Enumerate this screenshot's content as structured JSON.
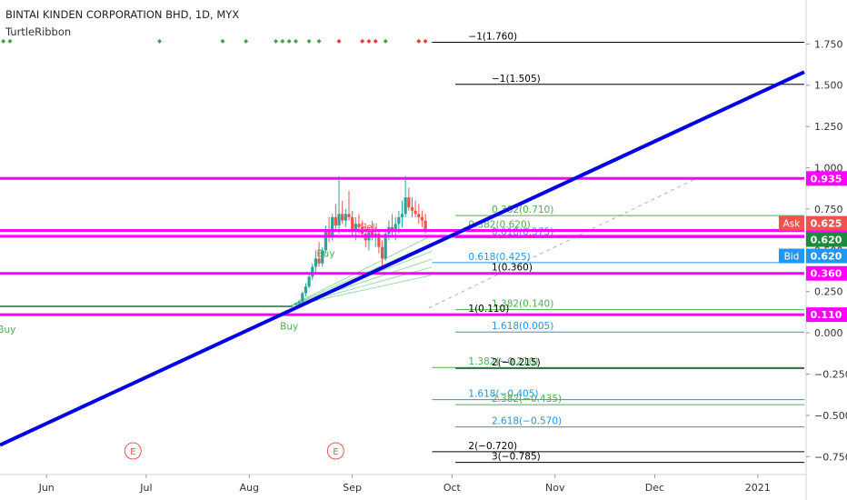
{
  "header": {
    "symbol_title": "BINTAI KINDEN CORPORATION BHD, 1D, MYX",
    "indicator": "TurtleRibbon"
  },
  "colors": {
    "background": "#ffffff",
    "magenta": "#ff00ff",
    "trend_blue": "#0000e6",
    "up_candle": "#26a69a",
    "down_candle": "#ef5350",
    "fib_green": "#4caf50",
    "fib_blue": "#2196f3",
    "fib_black": "#000000",
    "ask_red": "#ef5350",
    "bid_blue": "#2196f3",
    "last_green": "#1b8a3a"
  },
  "chart_data": {
    "type": "candlestick",
    "title": "BINTAI KINDEN CORPORATION BHD, 1D, MYX",
    "ylim": [
      -0.82,
      1.95
    ],
    "y_ticks": [
      "1.750",
      "1.500",
      "1.250",
      "1.000",
      "0.750",
      "0.500",
      "0.250",
      "0.000",
      "-0.250",
      "-0.500",
      "-0.750"
    ],
    "x_ticks": [
      {
        "label": "Jun",
        "day": 15
      },
      {
        "label": "Jul",
        "day": 45
      },
      {
        "label": "Aug",
        "day": 76
      },
      {
        "label": "Sep",
        "day": 107
      },
      {
        "label": "Oct",
        "day": 137
      },
      {
        "label": "Nov",
        "day": 168
      },
      {
        "label": "Dec",
        "day": 198
      },
      {
        "label": "2021",
        "day": 229
      }
    ],
    "x_domain": [
      1,
      243
    ],
    "candles": [
      [
        90,
        0.17,
        0.18,
        0.17,
        0.18
      ],
      [
        91,
        0.18,
        0.2,
        0.17,
        0.19
      ],
      [
        92,
        0.19,
        0.25,
        0.18,
        0.24
      ],
      [
        93,
        0.24,
        0.3,
        0.22,
        0.28
      ],
      [
        94,
        0.28,
        0.36,
        0.27,
        0.34
      ],
      [
        95,
        0.34,
        0.42,
        0.32,
        0.4
      ],
      [
        96,
        0.4,
        0.5,
        0.36,
        0.45
      ],
      [
        97,
        0.45,
        0.55,
        0.4,
        0.42
      ],
      [
        98,
        0.42,
        0.52,
        0.4,
        0.5
      ],
      [
        99,
        0.5,
        0.65,
        0.48,
        0.62
      ],
      [
        100,
        0.62,
        0.7,
        0.55,
        0.58
      ],
      [
        101,
        0.58,
        0.72,
        0.56,
        0.7
      ],
      [
        102,
        0.7,
        0.78,
        0.62,
        0.65
      ],
      [
        103,
        0.65,
        0.95,
        0.6,
        0.72
      ],
      [
        104,
        0.72,
        0.8,
        0.66,
        0.68
      ],
      [
        105,
        0.68,
        0.75,
        0.64,
        0.72
      ],
      [
        106,
        0.72,
        0.86,
        0.68,
        0.7
      ],
      [
        107,
        0.7,
        0.74,
        0.58,
        0.62
      ],
      [
        108,
        0.62,
        0.7,
        0.56,
        0.66
      ],
      [
        109,
        0.66,
        0.72,
        0.6,
        0.64
      ],
      [
        110,
        0.64,
        0.68,
        0.58,
        0.6
      ],
      [
        111,
        0.6,
        0.66,
        0.52,
        0.56
      ],
      [
        112,
        0.56,
        0.64,
        0.5,
        0.62
      ],
      [
        113,
        0.62,
        0.68,
        0.56,
        0.58
      ],
      [
        114,
        0.58,
        0.64,
        0.52,
        0.6
      ],
      [
        115,
        0.6,
        0.62,
        0.48,
        0.52
      ],
      [
        116,
        0.52,
        0.56,
        0.4,
        0.45
      ],
      [
        117,
        0.45,
        0.62,
        0.44,
        0.6
      ],
      [
        118,
        0.6,
        0.68,
        0.56,
        0.64
      ],
      [
        119,
        0.64,
        0.72,
        0.58,
        0.62
      ],
      [
        120,
        0.62,
        0.7,
        0.56,
        0.66
      ],
      [
        121,
        0.66,
        0.74,
        0.6,
        0.7
      ],
      [
        122,
        0.7,
        0.8,
        0.64,
        0.72
      ],
      [
        123,
        0.72,
        0.95,
        0.7,
        0.82
      ],
      [
        124,
        0.82,
        0.88,
        0.74,
        0.76
      ],
      [
        125,
        0.76,
        0.82,
        0.7,
        0.74
      ],
      [
        126,
        0.74,
        0.8,
        0.7,
        0.72
      ],
      [
        127,
        0.72,
        0.78,
        0.66,
        0.7
      ],
      [
        128,
        0.7,
        0.74,
        0.64,
        0.68
      ],
      [
        129,
        0.68,
        0.72,
        0.6,
        0.62
      ]
    ],
    "flat_segment": {
      "from_day": 1,
      "to_day": 89,
      "price": 0.16
    },
    "horizontal_levels": [
      {
        "label": "0.935",
        "value": 0.935
      },
      {
        "label": "0.620",
        "value": 0.62
      },
      {
        "label": "0.585",
        "value": 0.585
      },
      {
        "label": "0.360",
        "value": 0.36
      },
      {
        "label": "0.110",
        "value": 0.11
      }
    ],
    "price_badges": [
      {
        "label": "Ask",
        "value": "0.625",
        "price": 0.625,
        "kind": "ask"
      },
      {
        "label": "",
        "value": "0.620",
        "price": 0.62,
        "kind": "last"
      },
      {
        "label": "Bid",
        "value": "0.620",
        "price": 0.62,
        "kind": "bid"
      }
    ],
    "trendline": {
      "from": [
        1,
        -0.68
      ],
      "to": [
        243,
        1.58
      ]
    },
    "projection": {
      "from": [
        130,
        0.15
      ],
      "to": [
        210,
        0.93
      ]
    },
    "fib_levels": [
      {
        "label": "-1(1.760)",
        "value": 1.76,
        "from_day": 131,
        "to_day": 243,
        "color": "black"
      },
      {
        "label": "-1(1.505)",
        "value": 1.505,
        "from_day": 138,
        "to_day": 243,
        "color": "black"
      },
      {
        "label": "0.382(0.710)",
        "value": 0.71,
        "from_day": 138,
        "to_day": 243,
        "color": "green"
      },
      {
        "label": "0.382(0.620)",
        "value": 0.62,
        "from_day": 131,
        "to_day": 243,
        "color": "green"
      },
      {
        "label": "0.618(0.575)",
        "value": 0.575,
        "from_day": 138,
        "to_day": 243,
        "color": "blue"
      },
      {
        "label": "0.618(0.425)",
        "value": 0.425,
        "from_day": 131,
        "to_day": 243,
        "color": "blue"
      },
      {
        "label": "1(0.360)",
        "value": 0.36,
        "from_day": 138,
        "to_day": 243,
        "color": "black"
      },
      {
        "label": "1.382(0.140)",
        "value": 0.14,
        "from_day": 138,
        "to_day": 243,
        "color": "green"
      },
      {
        "label": "1(0.110)",
        "value": 0.11,
        "from_day": 131,
        "to_day": 243,
        "color": "black"
      },
      {
        "label": "1.618(0.005)",
        "value": 0.005,
        "from_day": 138,
        "to_day": 243,
        "color": "blue"
      },
      {
        "label": "1.382(-0.210)",
        "value": -0.21,
        "from_day": 131,
        "to_day": 243,
        "color": "green"
      },
      {
        "label": "2(-0.215)",
        "value": -0.215,
        "from_day": 138,
        "to_day": 243,
        "color": "black"
      },
      {
        "label": "1.618(-0.405)",
        "value": -0.405,
        "from_day": 131,
        "to_day": 243,
        "color": "blue"
      },
      {
        "label": "2.382(-0.435)",
        "value": -0.435,
        "from_day": 138,
        "to_day": 243,
        "color": "green"
      },
      {
        "label": "2.618(-0.570)",
        "value": -0.57,
        "from_day": 138,
        "to_day": 243,
        "color": "blue"
      },
      {
        "label": "2(-0.720)",
        "value": -0.72,
        "from_day": 131,
        "to_day": 243,
        "color": "black"
      },
      {
        "label": "3(-0.785)",
        "value": -0.785,
        "from_day": 138,
        "to_day": 243,
        "color": "black"
      }
    ],
    "signal_dots": [
      {
        "day": 2,
        "kind": "green"
      },
      {
        "day": 4,
        "kind": "green"
      },
      {
        "day": 49,
        "kind": "green"
      },
      {
        "day": 68,
        "kind": "green"
      },
      {
        "day": 75,
        "kind": "green"
      },
      {
        "day": 84,
        "kind": "green"
      },
      {
        "day": 86,
        "kind": "green"
      },
      {
        "day": 88,
        "kind": "green"
      },
      {
        "day": 90,
        "kind": "green"
      },
      {
        "day": 94,
        "kind": "green"
      },
      {
        "day": 97,
        "kind": "green"
      },
      {
        "day": 103,
        "kind": "red"
      },
      {
        "day": 110,
        "kind": "red"
      },
      {
        "day": 112,
        "kind": "red"
      },
      {
        "day": 114,
        "kind": "red"
      },
      {
        "day": 117,
        "kind": "green"
      },
      {
        "day": 127,
        "kind": "red"
      },
      {
        "day": 129,
        "kind": "red"
      }
    ],
    "annotations": [
      {
        "text": "Buy",
        "day": 3,
        "value": 0.0,
        "color": "green"
      },
      {
        "text": "Buy",
        "day": 88,
        "value": 0.02,
        "color": "green"
      },
      {
        "text": "Buy",
        "day": 99,
        "value": 0.46,
        "color": "green"
      },
      {
        "text": "Sell",
        "day": 112,
        "value": 0.62,
        "color": "red"
      }
    ],
    "events": [
      {
        "text": "E",
        "day": 41
      },
      {
        "text": "E",
        "day": 102
      }
    ]
  }
}
